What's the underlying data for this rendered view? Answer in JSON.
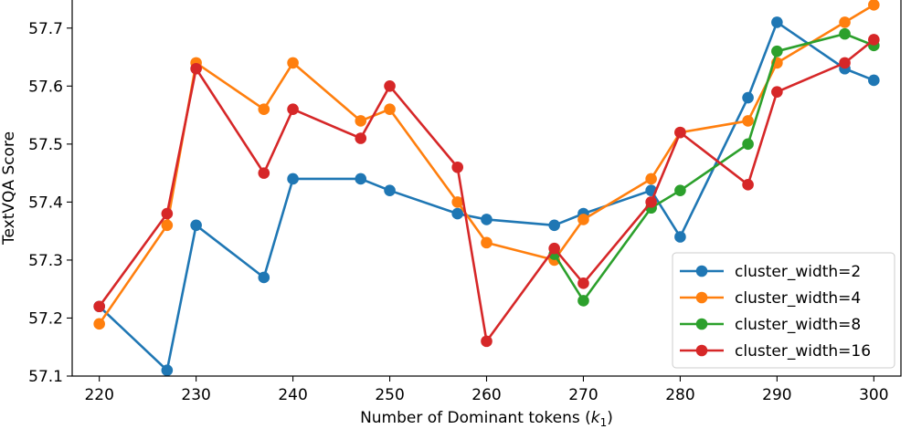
{
  "chart_data": {
    "type": "line",
    "title": "",
    "xlabel_text": "Number of Dominant tokens (",
    "xlabel_sym": "k",
    "xlabel_sub": "1",
    "xlabel_close": ")",
    "ylabel": "TextVQA Score",
    "xlim": [
      217.2,
      302.8
    ],
    "ylim": [
      57.1,
      57.75
    ],
    "xticks": [
      220,
      230,
      240,
      250,
      260,
      270,
      280,
      290,
      300
    ],
    "yticks": [
      57.1,
      57.2,
      57.3,
      57.4,
      57.5,
      57.6,
      57.7
    ],
    "xtick_labels": [
      "220",
      "230",
      "240",
      "250",
      "260",
      "270",
      "280",
      "290",
      "300"
    ],
    "ytick_labels": [
      "57.1",
      "57.2",
      "57.3",
      "57.4",
      "57.5",
      "57.6",
      "57.7"
    ],
    "grid": false,
    "legend_position": "lower-right",
    "series": [
      {
        "name": "cluster_width=2",
        "color": "#1f77b4",
        "x": [
          220,
          227,
          230,
          237,
          240,
          247,
          250,
          257,
          260,
          267,
          270,
          277,
          280,
          287,
          290,
          297,
          300
        ],
        "values": [
          57.22,
          57.11,
          57.36,
          57.27,
          57.44,
          57.44,
          57.42,
          57.38,
          57.37,
          57.36,
          57.38,
          57.42,
          57.34,
          57.58,
          57.71,
          57.63,
          57.61
        ]
      },
      {
        "name": "cluster_width=4",
        "color": "#ff7f0e",
        "x": [
          220,
          227,
          230,
          237,
          240,
          247,
          250,
          257,
          260,
          267,
          270,
          277,
          280,
          287,
          290,
          297,
          300
        ],
        "values": [
          57.19,
          57.36,
          57.64,
          57.56,
          57.64,
          57.54,
          57.56,
          57.4,
          57.33,
          57.3,
          57.37,
          57.44,
          57.52,
          57.54,
          57.64,
          57.71,
          57.74
        ]
      },
      {
        "name": "cluster_width=8",
        "color": "#2ca02c",
        "x": [
          267,
          270,
          277,
          280,
          287,
          290,
          297,
          300
        ],
        "values": [
          57.31,
          57.23,
          57.39,
          57.42,
          57.5,
          57.66,
          57.69,
          57.67
        ]
      },
      {
        "name": "cluster_width=16",
        "color": "#d62728",
        "x": [
          220,
          227,
          230,
          237,
          240,
          247,
          250,
          257,
          260,
          267,
          270,
          277,
          280,
          287,
          290,
          297,
          300
        ],
        "values": [
          57.22,
          57.38,
          57.63,
          57.45,
          57.56,
          57.51,
          57.6,
          57.46,
          57.16,
          57.32,
          57.26,
          57.4,
          57.52,
          57.43,
          57.59,
          57.64,
          57.68
        ]
      }
    ]
  }
}
